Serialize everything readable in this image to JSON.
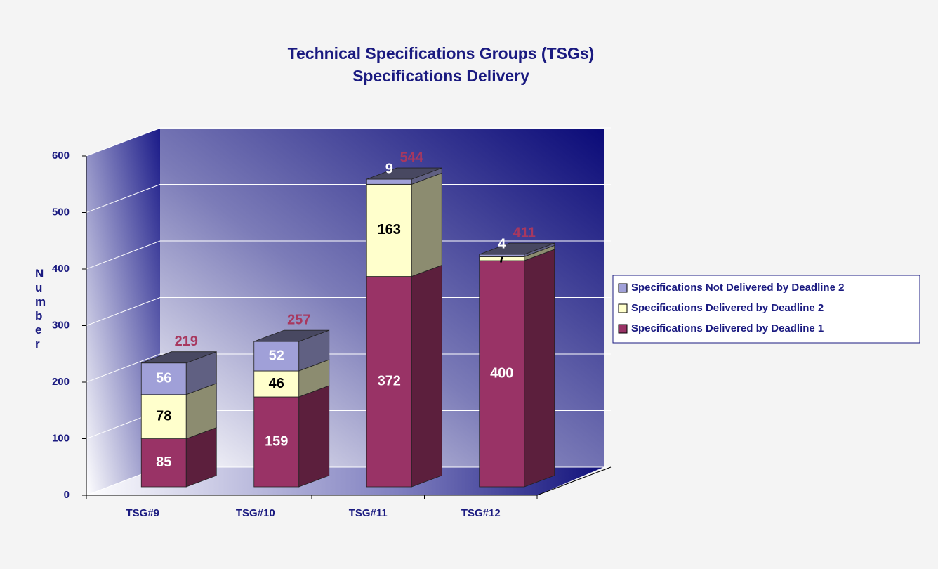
{
  "chart_data": {
    "type": "bar3d_stacked",
    "title": "Technical Specifications Groups (TSGs)",
    "subtitle": "Specifications Delivery",
    "y_label": "Number",
    "categories": [
      "TSG#9",
      "TSG#10",
      "TSG#11",
      "TSG#12"
    ],
    "series": [
      {
        "name": "Specifications Delivered by Deadline 1",
        "color": "#993366",
        "label_color": "#ffffff",
        "values": [
          85,
          159,
          372,
          400
        ]
      },
      {
        "name": "Specifications Delivered by Deadline 2",
        "color": "#ffffcc",
        "label_color": "#000000",
        "values": [
          78,
          46,
          163,
          7
        ]
      },
      {
        "name": "Specifications Not Delivered by Deadline 2",
        "color": "#a0a0d8",
        "label_color": "#ffffff",
        "values": [
          56,
          52,
          9,
          4
        ]
      }
    ],
    "totals": [
      219,
      257,
      544,
      411
    ],
    "totals_color": "#a8385f",
    "ylim": [
      0,
      600
    ],
    "yticks": [
      0,
      100,
      200,
      300,
      400,
      500,
      600
    ],
    "grid": true,
    "legend": "right"
  }
}
